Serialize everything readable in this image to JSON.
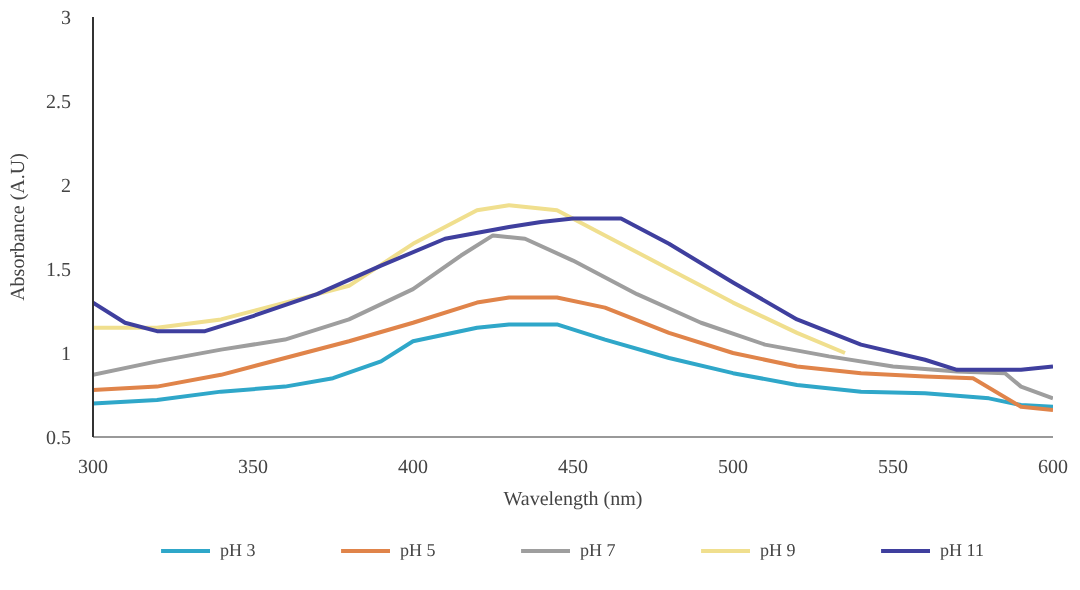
{
  "chart_data": {
    "type": "line",
    "xlabel": "Wavelength (nm)",
    "ylabel": "Absorbance (A.U)",
    "xlim": [
      300,
      600
    ],
    "xticks": [
      300,
      350,
      400,
      450,
      500,
      550,
      600
    ],
    "ylim": [
      0.5,
      3
    ],
    "yticks": [
      0.5,
      1,
      1.5,
      2,
      2.5,
      3
    ],
    "grid": false,
    "legend": "bottom",
    "line_style": "solid",
    "series": [
      {
        "name": "pH 3",
        "color": "#2fa7c9",
        "x": [
          300,
          320,
          340,
          360,
          375,
          390,
          400,
          420,
          430,
          445,
          460,
          480,
          500,
          520,
          540,
          560,
          580,
          590,
          600
        ],
        "values": [
          0.7,
          0.72,
          0.77,
          0.8,
          0.85,
          0.95,
          1.07,
          1.15,
          1.17,
          1.17,
          1.08,
          0.97,
          0.88,
          0.81,
          0.77,
          0.76,
          0.73,
          0.69,
          0.68
        ]
      },
      {
        "name": "pH 5",
        "color": "#e0844a",
        "x": [
          300,
          320,
          340,
          360,
          380,
          400,
          420,
          430,
          445,
          460,
          480,
          500,
          520,
          540,
          560,
          575,
          590,
          600
        ],
        "values": [
          0.78,
          0.8,
          0.87,
          0.97,
          1.07,
          1.18,
          1.3,
          1.33,
          1.33,
          1.27,
          1.12,
          1.0,
          0.92,
          0.88,
          0.86,
          0.85,
          0.68,
          0.66
        ]
      },
      {
        "name": "pH 7",
        "color": "#9e9e9e",
        "x": [
          300,
          320,
          340,
          360,
          380,
          400,
          415,
          425,
          435,
          450,
          470,
          490,
          510,
          530,
          550,
          570,
          585,
          590,
          600
        ],
        "values": [
          0.87,
          0.95,
          1.02,
          1.08,
          1.2,
          1.38,
          1.58,
          1.7,
          1.68,
          1.55,
          1.35,
          1.18,
          1.05,
          0.98,
          0.92,
          0.89,
          0.88,
          0.8,
          0.73
        ]
      },
      {
        "name": "pH 9",
        "color": "#f0df8e",
        "x": [
          300,
          320,
          340,
          360,
          380,
          400,
          420,
          430,
          445,
          460,
          480,
          500,
          520,
          535
        ],
        "values": [
          1.15,
          1.15,
          1.2,
          1.3,
          1.4,
          1.65,
          1.85,
          1.88,
          1.85,
          1.7,
          1.5,
          1.3,
          1.12,
          1.0
        ]
      },
      {
        "name": "pH 11",
        "color": "#3f3f9e",
        "x": [
          300,
          310,
          320,
          335,
          350,
          370,
          390,
          410,
          430,
          440,
          450,
          465,
          480,
          500,
          520,
          540,
          560,
          570,
          590,
          600
        ],
        "values": [
          1.3,
          1.18,
          1.13,
          1.13,
          1.22,
          1.35,
          1.52,
          1.68,
          1.75,
          1.78,
          1.8,
          1.8,
          1.65,
          1.42,
          1.2,
          1.05,
          0.96,
          0.9,
          0.9,
          0.92
        ]
      }
    ]
  }
}
